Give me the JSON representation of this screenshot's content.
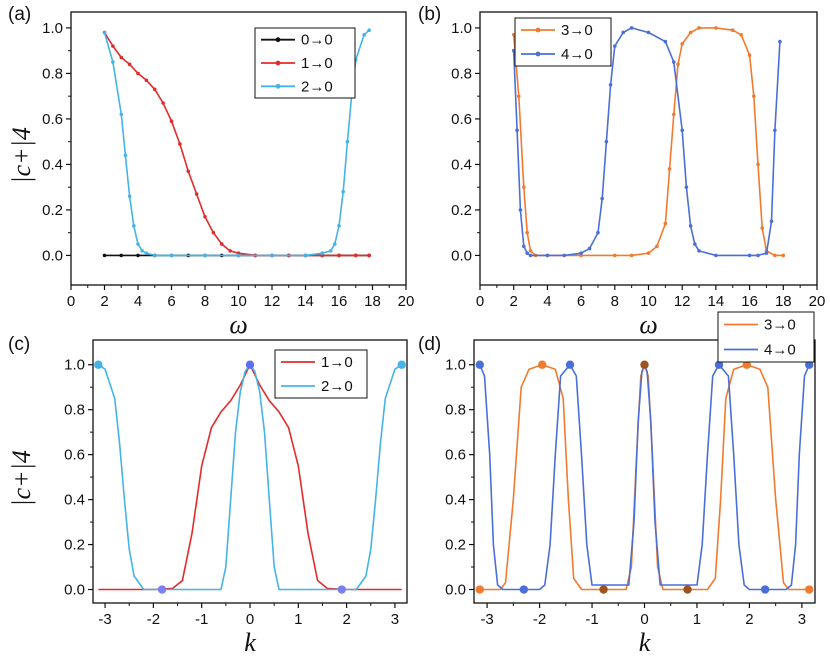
{
  "chart_data": [
    {
      "panel": "(a)",
      "type": "line",
      "xlabel": "ω",
      "ylabel": "|c+|4",
      "xlim": [
        0,
        20
      ],
      "ylim": [
        -0.13,
        1.07
      ],
      "xticks": [
        "0",
        "2",
        "4",
        "6",
        "8",
        "10",
        "12",
        "14",
        "16",
        "18",
        "20"
      ],
      "yticks": [
        "0.0",
        "0.2",
        "0.4",
        "0.6",
        "0.8",
        "1.0"
      ],
      "legend_position": "top-right",
      "series": [
        {
          "name": "0→0",
          "color": "#111111",
          "marker": "dots",
          "x": [
            2,
            3,
            4,
            5,
            6,
            7,
            8,
            9,
            10,
            11,
            12,
            13,
            14,
            15,
            16,
            17,
            17.8
          ],
          "y": [
            0,
            0,
            0,
            0,
            0,
            0,
            0,
            0,
            0,
            0,
            0,
            0,
            0,
            0,
            0,
            0,
            0
          ]
        },
        {
          "name": "1→0",
          "color": "#e32b2b",
          "marker": "dots",
          "x": [
            2,
            2.5,
            3,
            3.5,
            4,
            4.5,
            5,
            5.5,
            6,
            6.5,
            7,
            7.5,
            8,
            8.5,
            9,
            9.5,
            10,
            11,
            12,
            13,
            14,
            15,
            16,
            17,
            17.8
          ],
          "y": [
            0.98,
            0.92,
            0.87,
            0.84,
            0.8,
            0.77,
            0.73,
            0.67,
            0.59,
            0.49,
            0.37,
            0.27,
            0.17,
            0.1,
            0.05,
            0.02,
            0.01,
            0,
            0,
            0,
            0,
            0,
            0,
            0,
            0
          ]
        },
        {
          "name": "2→0",
          "color": "#44b4e8",
          "marker": "dots",
          "x": [
            2,
            2.5,
            3,
            3.25,
            3.5,
            3.75,
            4,
            4.25,
            4.5,
            5,
            6,
            8,
            10,
            12,
            14,
            15,
            15.5,
            15.75,
            16,
            16.25,
            16.5,
            16.75,
            17,
            17.5,
            17.8
          ],
          "y": [
            0.98,
            0.85,
            0.62,
            0.44,
            0.26,
            0.13,
            0.05,
            0.02,
            0.01,
            0,
            0,
            0,
            0,
            0,
            0,
            0.01,
            0.02,
            0.05,
            0.13,
            0.28,
            0.5,
            0.7,
            0.86,
            0.97,
            0.99
          ]
        }
      ]
    },
    {
      "panel": "(b)",
      "type": "line",
      "xlabel": "ω",
      "ylabel": "",
      "xlim": [
        0,
        20
      ],
      "ylim": [
        -0.13,
        1.07
      ],
      "xticks": [
        "0",
        "2",
        "4",
        "6",
        "8",
        "10",
        "12",
        "14",
        "16",
        "18",
        "20"
      ],
      "yticks": [
        "0.0",
        "0.2",
        "0.4",
        "0.6",
        "0.8",
        "1.0"
      ],
      "legend_position": "top-left",
      "series": [
        {
          "name": "3→0",
          "color": "#f07b2f",
          "marker": "dots",
          "x": [
            2,
            2.3,
            2.6,
            2.8,
            3,
            3.3,
            4,
            6,
            8,
            9,
            10,
            10.5,
            11,
            11.25,
            11.5,
            11.75,
            12,
            12.5,
            13,
            14,
            15,
            15.5,
            16,
            16.25,
            16.5,
            16.75,
            17,
            17.5,
            18
          ],
          "y": [
            0.97,
            0.7,
            0.3,
            0.1,
            0.02,
            0,
            0,
            0,
            0,
            0,
            0.01,
            0.04,
            0.14,
            0.38,
            0.62,
            0.84,
            0.93,
            0.98,
            1.0,
            1.0,
            0.99,
            0.97,
            0.88,
            0.7,
            0.4,
            0.12,
            0.02,
            0,
            0
          ]
        },
        {
          "name": "4→0",
          "color": "#4a6fd8",
          "marker": "dots",
          "x": [
            2,
            2.2,
            2.4,
            2.6,
            2.8,
            3,
            4,
            5,
            6,
            6.5,
            7,
            7.25,
            7.5,
            7.75,
            8,
            8.5,
            9,
            10,
            11,
            11.5,
            12,
            12.25,
            12.5,
            12.75,
            13,
            14,
            16,
            16.5,
            17,
            17.3,
            17.5,
            17.8
          ],
          "y": [
            0.9,
            0.55,
            0.2,
            0.04,
            0.01,
            0,
            0,
            0,
            0.01,
            0.03,
            0.1,
            0.25,
            0.5,
            0.75,
            0.92,
            0.98,
            1.0,
            0.98,
            0.94,
            0.85,
            0.55,
            0.3,
            0.13,
            0.05,
            0.02,
            0,
            0,
            0,
            0.01,
            0.15,
            0.55,
            0.94
          ]
        }
      ]
    },
    {
      "panel": "(c)",
      "type": "line",
      "xlabel": "k",
      "ylabel": "|c+|4",
      "xlim": [
        -3.25,
        3.25
      ],
      "ylim": [
        -0.06,
        1.11
      ],
      "xticks": [
        "-3",
        "-2",
        "-1",
        "0",
        "1",
        "2",
        "3"
      ],
      "yticks": [
        "0.0",
        "0.2",
        "0.4",
        "0.6",
        "0.8",
        "1.0"
      ],
      "legend_position": "top-right",
      "series": [
        {
          "name": "1→0",
          "color": "#e32b2b",
          "marker": "none",
          "x": [
            -3.14,
            -2,
            -1.6,
            -1.4,
            -1.2,
            -1.0,
            -0.8,
            -0.6,
            -0.4,
            -0.2,
            0,
            0.2,
            0.4,
            0.6,
            0.8,
            1.0,
            1.2,
            1.4,
            1.6,
            2,
            3.14
          ],
          "y": [
            0,
            0,
            0.005,
            0.04,
            0.25,
            0.55,
            0.72,
            0.79,
            0.84,
            0.91,
            1.0,
            0.91,
            0.84,
            0.79,
            0.72,
            0.55,
            0.25,
            0.04,
            0.005,
            0,
            0
          ]
        },
        {
          "name": "2→0",
          "color": "#44b4e8",
          "marker": "none",
          "x": [
            -3.14,
            -3.0,
            -2.8,
            -2.7,
            -2.6,
            -2.5,
            -2.4,
            -2.2,
            -0.6,
            -0.5,
            -0.4,
            -0.3,
            -0.2,
            -0.1,
            0,
            0.1,
            0.2,
            0.3,
            0.4,
            0.5,
            0.6,
            2.2,
            2.4,
            2.5,
            2.6,
            2.7,
            2.8,
            3.0,
            3.14
          ],
          "y": [
            1.0,
            0.98,
            0.85,
            0.65,
            0.4,
            0.18,
            0.06,
            0,
            0,
            0.1,
            0.4,
            0.7,
            0.88,
            0.97,
            1.0,
            0.97,
            0.88,
            0.7,
            0.4,
            0.1,
            0,
            0,
            0.06,
            0.18,
            0.4,
            0.65,
            0.85,
            0.98,
            1.0
          ]
        }
      ],
      "points": [
        {
          "x": -3.14,
          "y": 1.0,
          "color": "#44b4e8"
        },
        {
          "x": 3.14,
          "y": 1.0,
          "color": "#44b4e8"
        },
        {
          "x": 0,
          "y": 1.0,
          "color": "#5b6ff0"
        },
        {
          "x": -1.82,
          "y": 0,
          "color": "#7b7ff0"
        },
        {
          "x": 1.9,
          "y": 0,
          "color": "#7b7ff0"
        }
      ]
    },
    {
      "panel": "(d)",
      "type": "line",
      "xlabel": "k",
      "ylabel": "",
      "xlim": [
        -3.25,
        3.25
      ],
      "ylim": [
        -0.06,
        1.11
      ],
      "xticks": [
        "-3",
        "-2",
        "-1",
        "0",
        "1",
        "2",
        "3"
      ],
      "yticks": [
        "0.0",
        "0.2",
        "0.4",
        "0.6",
        "0.8",
        "1.0"
      ],
      "legend_position": "top-right",
      "series": [
        {
          "name": "3→0",
          "color": "#f07b2f",
          "marker": "none",
          "x": [
            -3.14,
            -2.75,
            -2.65,
            -2.5,
            -2.35,
            -2.2,
            -1.95,
            -1.7,
            -1.55,
            -1.45,
            -1.35,
            -1.2,
            -0.35,
            -0.25,
            -0.15,
            -0.07,
            0,
            0.07,
            0.15,
            0.25,
            0.35,
            1.2,
            1.35,
            1.45,
            1.55,
            1.7,
            1.95,
            2.2,
            2.35,
            2.5,
            2.65,
            2.75,
            3.14
          ],
          "y": [
            0,
            0,
            0.03,
            0.4,
            0.9,
            0.98,
            1.0,
            0.98,
            0.85,
            0.4,
            0.05,
            0,
            0,
            0.1,
            0.6,
            0.95,
            1.0,
            0.95,
            0.6,
            0.1,
            0,
            0,
            0.05,
            0.4,
            0.85,
            0.98,
            1.0,
            0.98,
            0.9,
            0.4,
            0.03,
            0,
            0
          ]
        },
        {
          "name": "4→0",
          "color": "#4a6fd8",
          "marker": "none",
          "x": [
            -3.14,
            -3.05,
            -2.95,
            -2.88,
            -2.8,
            -2.7,
            -2.0,
            -1.9,
            -1.8,
            -1.7,
            -1.6,
            -1.42,
            -1.3,
            -1.2,
            -1.1,
            -1.0,
            -0.3,
            -0.2,
            -0.12,
            -0.05,
            0,
            0.05,
            0.12,
            0.2,
            0.3,
            1.0,
            1.1,
            1.2,
            1.3,
            1.42,
            1.6,
            1.7,
            1.8,
            1.9,
            2.0,
            2.7,
            2.8,
            2.88,
            2.95,
            3.05,
            3.14
          ],
          "y": [
            1.0,
            0.95,
            0.6,
            0.2,
            0.02,
            0,
            0,
            0.02,
            0.2,
            0.6,
            0.95,
            1.0,
            0.95,
            0.6,
            0.2,
            0.02,
            0.02,
            0.3,
            0.75,
            0.97,
            1.0,
            0.97,
            0.75,
            0.3,
            0.02,
            0.02,
            0.2,
            0.6,
            0.95,
            1.0,
            0.95,
            0.6,
            0.2,
            0.02,
            0,
            0,
            0.02,
            0.2,
            0.6,
            0.95,
            1.0
          ]
        }
      ],
      "points": [
        {
          "x": -3.14,
          "y": 1.0,
          "color": "#4a6fd8"
        },
        {
          "x": -1.42,
          "y": 1.0,
          "color": "#4a6fd8"
        },
        {
          "x": 1.42,
          "y": 1.0,
          "color": "#4a6fd8"
        },
        {
          "x": 3.14,
          "y": 1.0,
          "color": "#4a6fd8"
        },
        {
          "x": -1.95,
          "y": 1.0,
          "color": "#f07b2f"
        },
        {
          "x": 1.95,
          "y": 1.0,
          "color": "#f07b2f"
        },
        {
          "x": 0,
          "y": 1.0,
          "color": "#a0521d"
        },
        {
          "x": -3.14,
          "y": 0,
          "color": "#f07b2f"
        },
        {
          "x": 3.14,
          "y": 0,
          "color": "#f07b2f"
        },
        {
          "x": -2.3,
          "y": 0,
          "color": "#4a6fd8"
        },
        {
          "x": 2.3,
          "y": 0,
          "color": "#4a6fd8"
        },
        {
          "x": -0.78,
          "y": 0,
          "color": "#a0521d"
        },
        {
          "x": 0.82,
          "y": 0,
          "color": "#a0521d"
        }
      ]
    }
  ]
}
